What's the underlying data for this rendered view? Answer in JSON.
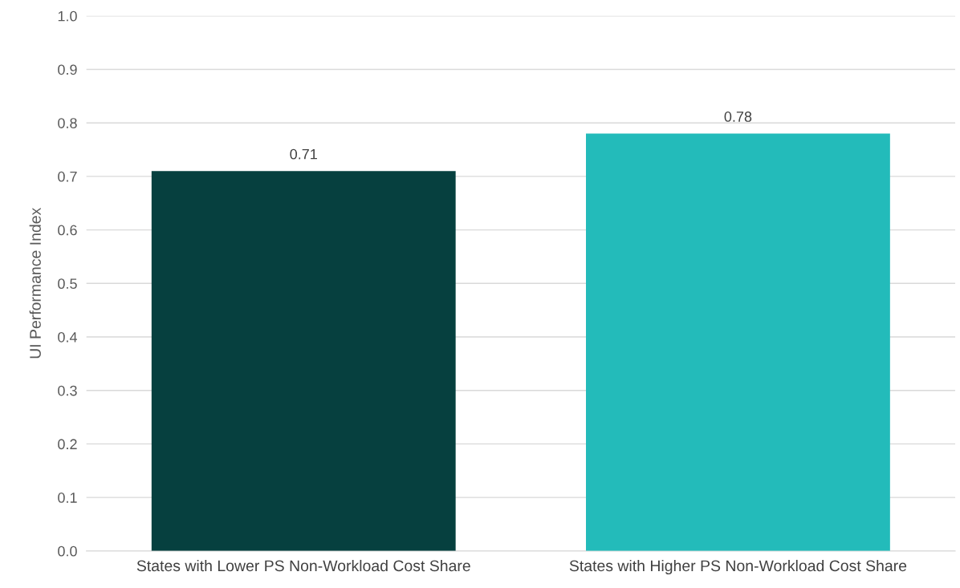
{
  "chart_data": {
    "type": "bar",
    "ylabel": "UI Performance Index",
    "categories": [
      "States with Lower PS Non-Workload Cost Share",
      "States with Higher PS Non-Workload Cost Share"
    ],
    "values": [
      0.71,
      0.78
    ],
    "colors": [
      "#06403f",
      "#23bbba"
    ],
    "ylim": [
      0,
      1.0
    ],
    "yticks": [
      {
        "value": 0,
        "label": "0.0"
      },
      0.1,
      0.2,
      0.3,
      0.4,
      0.5,
      0.6,
      0.7,
      0.8,
      0.9,
      {
        "value": 1.0,
        "label": "1.0"
      }
    ],
    "grid": "y",
    "data_labels": true,
    "legend": false
  }
}
